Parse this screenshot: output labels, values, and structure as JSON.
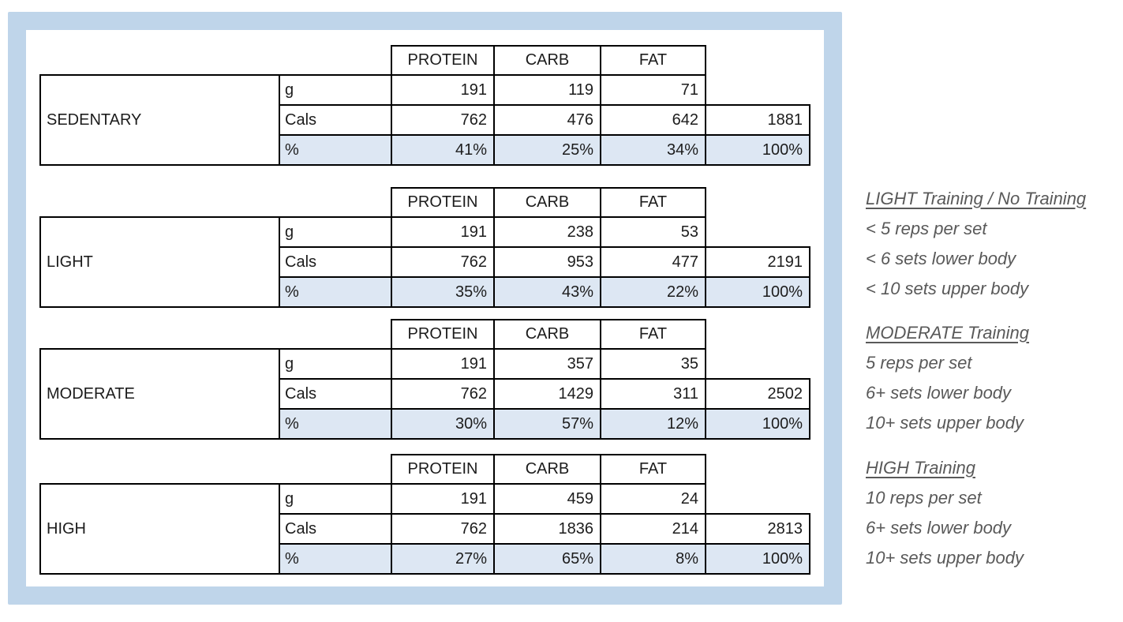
{
  "colors": {
    "frame_blue": "#bfd5ea",
    "percent_row_blue": "#dde7f3",
    "table_border": "#000000",
    "table_text": "#1c1c1c",
    "notes_text": "#595959"
  },
  "columns": [
    "PROTEIN",
    "CARB",
    "FAT"
  ],
  "row_labels": {
    "grams": "g",
    "cals": "Cals",
    "percent": "%"
  },
  "tables": [
    {
      "label": "SEDENTARY",
      "grams": [
        "191",
        "119",
        "71"
      ],
      "cals": [
        "762",
        "476",
        "642"
      ],
      "cals_total": "1881",
      "percent": [
        "41%",
        "25%",
        "34%"
      ],
      "percent_total": "100%"
    },
    {
      "label": "LIGHT",
      "grams": [
        "191",
        "238",
        "53"
      ],
      "cals": [
        "762",
        "953",
        "477"
      ],
      "cals_total": "2191",
      "percent": [
        "35%",
        "43%",
        "22%"
      ],
      "percent_total": "100%"
    },
    {
      "label": "MODERATE",
      "grams": [
        "191",
        "357",
        "35"
      ],
      "cals": [
        "762",
        "1429",
        "311"
      ],
      "cals_total": "2502",
      "percent": [
        "30%",
        "57%",
        "12%"
      ],
      "percent_total": "100%"
    },
    {
      "label": "HIGH",
      "grams": [
        "191",
        "459",
        "24"
      ],
      "cals": [
        "762",
        "1836",
        "214"
      ],
      "cals_total": "2813",
      "percent": [
        "27%",
        "65%",
        "8%"
      ],
      "percent_total": "100%"
    }
  ],
  "notes": [
    {
      "title": "LIGHT Training / No Training",
      "lines": [
        "< 5 reps per set",
        "< 6 sets lower body",
        "< 10 sets upper body"
      ]
    },
    {
      "title": "MODERATE Training",
      "lines": [
        "5 reps per set",
        "6+ sets lower body",
        "10+ sets upper body"
      ]
    },
    {
      "title": "HIGH Training",
      "lines": [
        "10 reps per set",
        "6+ sets lower body",
        "10+ sets upper body"
      ]
    }
  ]
}
